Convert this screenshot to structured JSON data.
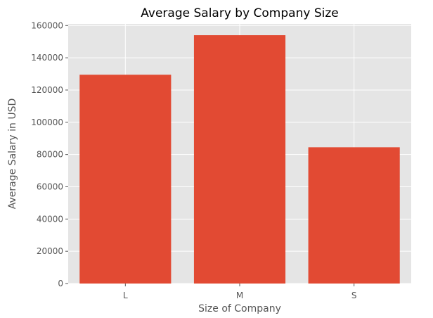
{
  "chart_data": {
    "type": "bar",
    "title": "Average Salary by Company Size",
    "xlabel": "Size of Company",
    "ylabel": "Average Salary in USD",
    "categories": [
      "L",
      "M",
      "S"
    ],
    "values": [
      129500,
      154000,
      84500
    ],
    "ylim": [
      0,
      161000
    ],
    "yticks": [
      0,
      20000,
      40000,
      60000,
      80000,
      100000,
      120000,
      140000,
      160000
    ],
    "grid": true,
    "colors": {
      "bar": "#E24A33",
      "background": "#E5E5E5",
      "grid": "#FFFFFF",
      "text": "#555555"
    }
  }
}
